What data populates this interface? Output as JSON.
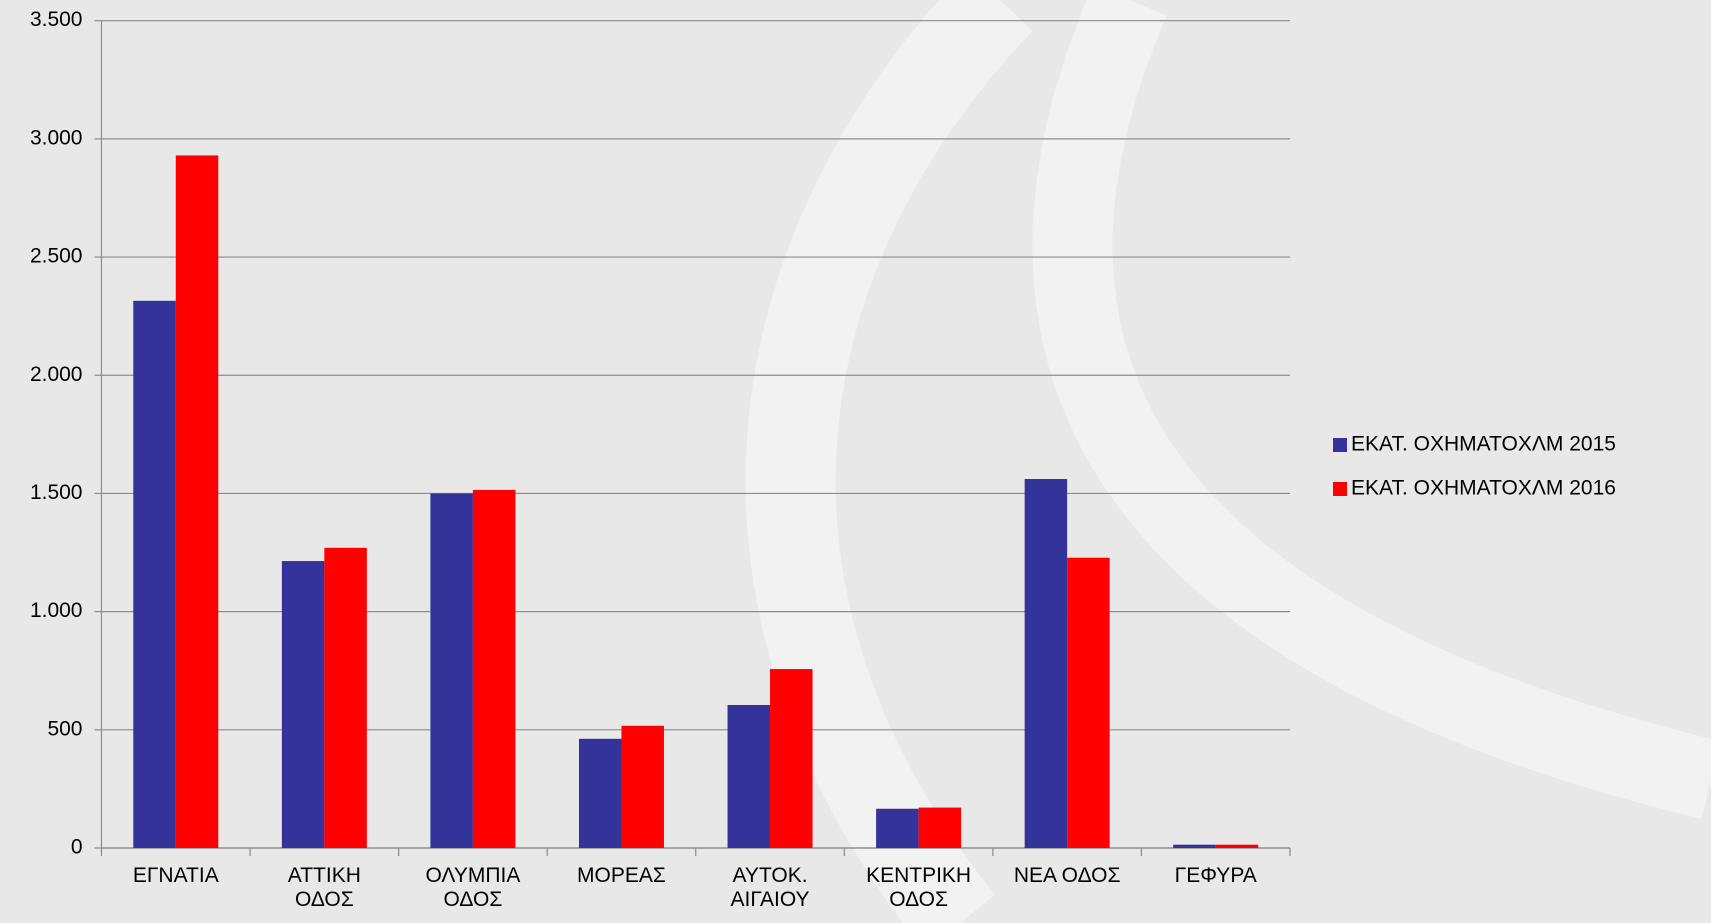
{
  "chart_data": {
    "type": "bar",
    "categories": [
      "ΕΓΝΑΤΙΑ",
      "ΑΤΤΙΚΗ\nΟΔΟΣ",
      "ΟΛΥΜΠΙΑ\nΟΔΟΣ",
      "ΜΟΡΕΑΣ",
      "ΑΥΤΟΚ.\nΑΙΓΑΙΟΥ",
      "ΚΕΝΤΡΙΚΗ\nΟΔΟΣ",
      "ΝΕΑ ΟΔΟΣ",
      "ΓΕΦΥΡΑ"
    ],
    "series": [
      {
        "name": "ΕΚΑΤ. ΟΧΗΜΑΤΟΧΛΜ 2015",
        "color": "#333399",
        "values": [
          2315,
          1214,
          1500,
          462,
          605,
          166,
          1561,
          14
        ]
      },
      {
        "name": "ΕΚΑΤ. ΟΧΗΜΑΤΟΧΛΜ 2016",
        "color": "#ff0000",
        "values": [
          2930,
          1270,
          1515,
          517,
          757,
          171,
          1228,
          14
        ]
      }
    ],
    "ylim": [
      0,
      3500
    ],
    "yticks": [
      0,
      500,
      {
        "value": 1000,
        "label": "1.000"
      },
      {
        "value": 1500,
        "label": "1.500"
      },
      {
        "value": 2000,
        "label": "2.000"
      },
      {
        "value": 2500,
        "label": "2.500"
      },
      {
        "value": 3000,
        "label": "3.000"
      },
      {
        "value": 3500,
        "label": "3.500"
      }
    ],
    "grid": true,
    "legend": "right"
  }
}
